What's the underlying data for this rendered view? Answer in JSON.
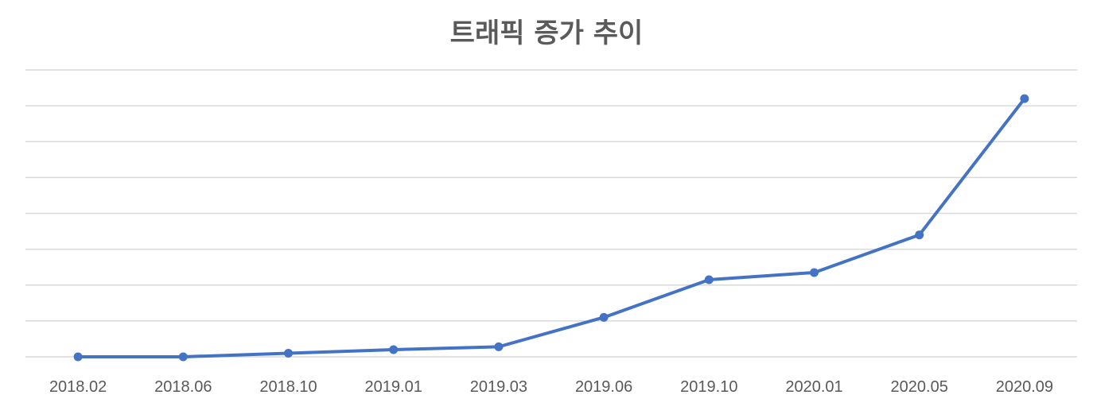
{
  "chart_data": {
    "type": "line",
    "title": "트래픽 증가 추이",
    "xlabel": "",
    "ylabel": "",
    "categories": [
      "2018.02",
      "2018.06",
      "2018.10",
      "2019.01",
      "2019.03",
      "2019.06",
      "2019.10",
      "2020.01",
      "2020.05",
      "2020.09"
    ],
    "series": [
      {
        "values": [
          0,
          0,
          0.1,
          0.2,
          0.28,
          1.1,
          2.15,
          2.35,
          3.4,
          7.2
        ],
        "color": "#4472c4"
      }
    ],
    "ylim": [
      0,
      8
    ],
    "y_gridlines": 8,
    "grid": true,
    "y_tick_labels_visible": false,
    "legend": "none",
    "markers": true
  }
}
